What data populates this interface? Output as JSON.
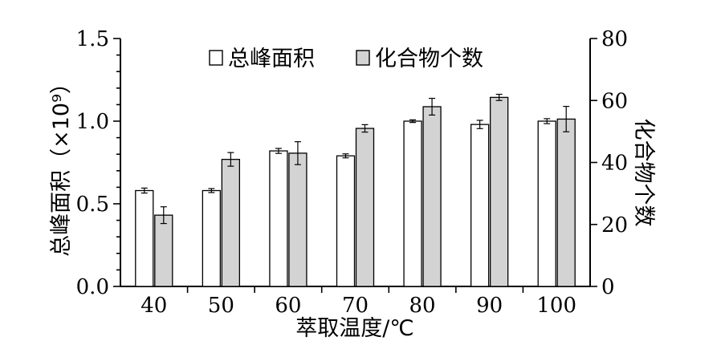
{
  "colors": {
    "series_area": "#ffffff",
    "series_count": "#d3d3d3",
    "stroke": "#000000"
  },
  "chart_data": {
    "type": "bar",
    "categories": [
      "40",
      "50",
      "60",
      "70",
      "80",
      "90",
      "100"
    ],
    "xlabel": "萃取温度/℃",
    "ylabel_left": "总峰面积（×10⁹）",
    "ylabel_right": "化合物个数",
    "ylim_left": [
      0,
      1.5
    ],
    "ylim_right": [
      0,
      80
    ],
    "yticks_left": [
      "0.0",
      "0.5",
      "1.0",
      "1.5"
    ],
    "yticks_left_values": [
      0,
      0.5,
      1.0,
      1.5
    ],
    "yticks_right": [
      "0",
      "20",
      "40",
      "60",
      "80"
    ],
    "yticks_right_values": [
      0,
      20,
      40,
      60,
      80
    ],
    "legend_position": "top-center",
    "grid": false,
    "series": [
      {
        "name": "总峰面积",
        "axis": "left",
        "values": [
          0.58,
          0.58,
          0.82,
          0.79,
          1.0,
          0.98,
          1.0
        ],
        "errors": [
          0.015,
          0.012,
          0.015,
          0.012,
          0.008,
          0.025,
          0.015
        ]
      },
      {
        "name": "化合物个数",
        "axis": "right",
        "values": [
          23,
          41,
          43,
          51,
          58,
          61,
          54
        ],
        "errors": [
          2.7,
          2.2,
          3.7,
          1.2,
          2.7,
          1.0,
          4.1
        ]
      }
    ]
  }
}
